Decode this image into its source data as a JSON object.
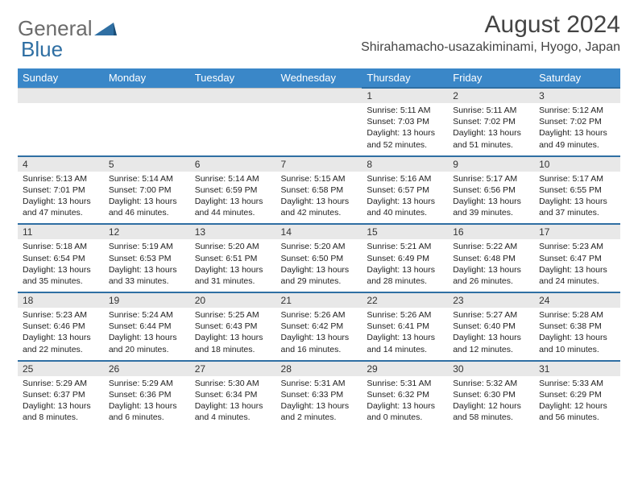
{
  "logo": {
    "word1": "General",
    "word2": "Blue"
  },
  "header": {
    "month_title": "August 2024",
    "location": "Shirahamacho-usazakiminami, Hyogo, Japan"
  },
  "colors": {
    "header_bg": "#3a87c8",
    "header_border": "#2f6fa3",
    "daynum_bg": "#e8e8e8",
    "logo_gray": "#6b6b6b",
    "logo_blue": "#2f6fa3"
  },
  "day_headers": [
    "Sunday",
    "Monday",
    "Tuesday",
    "Wednesday",
    "Thursday",
    "Friday",
    "Saturday"
  ],
  "weeks": [
    [
      null,
      null,
      null,
      null,
      {
        "n": "1",
        "sr": "5:11 AM",
        "ss": "7:03 PM",
        "dl": "13 hours and 52 minutes."
      },
      {
        "n": "2",
        "sr": "5:11 AM",
        "ss": "7:02 PM",
        "dl": "13 hours and 51 minutes."
      },
      {
        "n": "3",
        "sr": "5:12 AM",
        "ss": "7:02 PM",
        "dl": "13 hours and 49 minutes."
      }
    ],
    [
      {
        "n": "4",
        "sr": "5:13 AM",
        "ss": "7:01 PM",
        "dl": "13 hours and 47 minutes."
      },
      {
        "n": "5",
        "sr": "5:14 AM",
        "ss": "7:00 PM",
        "dl": "13 hours and 46 minutes."
      },
      {
        "n": "6",
        "sr": "5:14 AM",
        "ss": "6:59 PM",
        "dl": "13 hours and 44 minutes."
      },
      {
        "n": "7",
        "sr": "5:15 AM",
        "ss": "6:58 PM",
        "dl": "13 hours and 42 minutes."
      },
      {
        "n": "8",
        "sr": "5:16 AM",
        "ss": "6:57 PM",
        "dl": "13 hours and 40 minutes."
      },
      {
        "n": "9",
        "sr": "5:17 AM",
        "ss": "6:56 PM",
        "dl": "13 hours and 39 minutes."
      },
      {
        "n": "10",
        "sr": "5:17 AM",
        "ss": "6:55 PM",
        "dl": "13 hours and 37 minutes."
      }
    ],
    [
      {
        "n": "11",
        "sr": "5:18 AM",
        "ss": "6:54 PM",
        "dl": "13 hours and 35 minutes."
      },
      {
        "n": "12",
        "sr": "5:19 AM",
        "ss": "6:53 PM",
        "dl": "13 hours and 33 minutes."
      },
      {
        "n": "13",
        "sr": "5:20 AM",
        "ss": "6:51 PM",
        "dl": "13 hours and 31 minutes."
      },
      {
        "n": "14",
        "sr": "5:20 AM",
        "ss": "6:50 PM",
        "dl": "13 hours and 29 minutes."
      },
      {
        "n": "15",
        "sr": "5:21 AM",
        "ss": "6:49 PM",
        "dl": "13 hours and 28 minutes."
      },
      {
        "n": "16",
        "sr": "5:22 AM",
        "ss": "6:48 PM",
        "dl": "13 hours and 26 minutes."
      },
      {
        "n": "17",
        "sr": "5:23 AM",
        "ss": "6:47 PM",
        "dl": "13 hours and 24 minutes."
      }
    ],
    [
      {
        "n": "18",
        "sr": "5:23 AM",
        "ss": "6:46 PM",
        "dl": "13 hours and 22 minutes."
      },
      {
        "n": "19",
        "sr": "5:24 AM",
        "ss": "6:44 PM",
        "dl": "13 hours and 20 minutes."
      },
      {
        "n": "20",
        "sr": "5:25 AM",
        "ss": "6:43 PM",
        "dl": "13 hours and 18 minutes."
      },
      {
        "n": "21",
        "sr": "5:26 AM",
        "ss": "6:42 PM",
        "dl": "13 hours and 16 minutes."
      },
      {
        "n": "22",
        "sr": "5:26 AM",
        "ss": "6:41 PM",
        "dl": "13 hours and 14 minutes."
      },
      {
        "n": "23",
        "sr": "5:27 AM",
        "ss": "6:40 PM",
        "dl": "13 hours and 12 minutes."
      },
      {
        "n": "24",
        "sr": "5:28 AM",
        "ss": "6:38 PM",
        "dl": "13 hours and 10 minutes."
      }
    ],
    [
      {
        "n": "25",
        "sr": "5:29 AM",
        "ss": "6:37 PM",
        "dl": "13 hours and 8 minutes."
      },
      {
        "n": "26",
        "sr": "5:29 AM",
        "ss": "6:36 PM",
        "dl": "13 hours and 6 minutes."
      },
      {
        "n": "27",
        "sr": "5:30 AM",
        "ss": "6:34 PM",
        "dl": "13 hours and 4 minutes."
      },
      {
        "n": "28",
        "sr": "5:31 AM",
        "ss": "6:33 PM",
        "dl": "13 hours and 2 minutes."
      },
      {
        "n": "29",
        "sr": "5:31 AM",
        "ss": "6:32 PM",
        "dl": "13 hours and 0 minutes."
      },
      {
        "n": "30",
        "sr": "5:32 AM",
        "ss": "6:30 PM",
        "dl": "12 hours and 58 minutes."
      },
      {
        "n": "31",
        "sr": "5:33 AM",
        "ss": "6:29 PM",
        "dl": "12 hours and 56 minutes."
      }
    ]
  ],
  "labels": {
    "sunrise": "Sunrise:",
    "sunset": "Sunset:",
    "daylight": "Daylight:"
  }
}
